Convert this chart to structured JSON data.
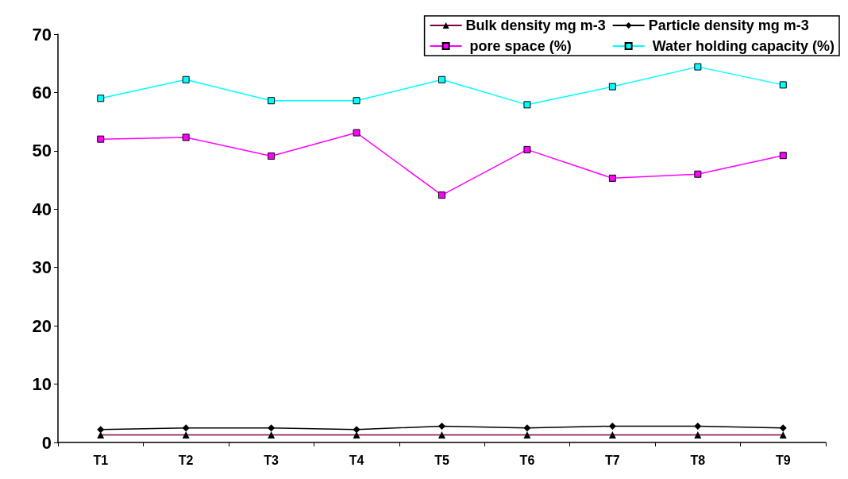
{
  "chart_data": {
    "type": "line",
    "categories": [
      "T1",
      "T2",
      "T3",
      "T4",
      "T5",
      "T6",
      "T7",
      "T8",
      "T9"
    ],
    "series": [
      {
        "name": "Bulk density mg m-3",
        "color": "#800040",
        "marker": "triangle",
        "values": [
          1.3,
          1.3,
          1.3,
          1.3,
          1.3,
          1.3,
          1.3,
          1.3,
          1.3
        ]
      },
      {
        "name": "Particle density mg m-3",
        "color": "#000000",
        "marker": "diamond",
        "values": [
          2.2,
          2.5,
          2.5,
          2.2,
          2.8,
          2.5,
          2.8,
          2.8,
          2.5
        ]
      },
      {
        "name": " pore space (%)",
        "color": "#ff00ff",
        "marker": "square",
        "values": [
          52.0,
          52.3,
          49.1,
          53.1,
          42.4,
          50.2,
          45.3,
          46.0,
          49.2
        ]
      },
      {
        "name": " Water holding capacity (%)",
        "color": "#00ffff",
        "marker": "square",
        "values": [
          59.0,
          62.2,
          58.6,
          58.6,
          62.2,
          57.9,
          61.0,
          64.4,
          61.3
        ]
      }
    ],
    "ylim": [
      0,
      70
    ],
    "yticks": [
      0,
      10,
      20,
      30,
      40,
      50,
      60,
      70
    ],
    "grid": false,
    "legend": "top right"
  }
}
